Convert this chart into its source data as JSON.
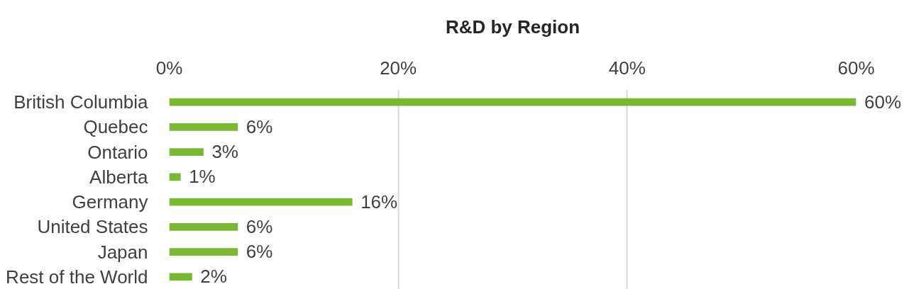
{
  "chart_data": {
    "type": "bar",
    "orientation": "horizontal",
    "title": "R&D by Region",
    "categories": [
      "British Columbia",
      "Quebec",
      "Ontario",
      "Alberta",
      "Germany",
      "United States",
      "Japan",
      "Rest of the World"
    ],
    "values": [
      60,
      6,
      3,
      1,
      16,
      6,
      6,
      2
    ],
    "value_labels": [
      "60%",
      "6%",
      "3%",
      "1%",
      "16%",
      "6%",
      "6%",
      "2%"
    ],
    "color": "#7ab833",
    "xlim": [
      0,
      60
    ],
    "xticks": [
      {
        "value": 0,
        "label": "0%"
      },
      {
        "value": 20,
        "label": "20%"
      },
      {
        "value": 40,
        "label": "40%"
      },
      {
        "value": 60,
        "label": "60%"
      }
    ],
    "grid": "x"
  }
}
